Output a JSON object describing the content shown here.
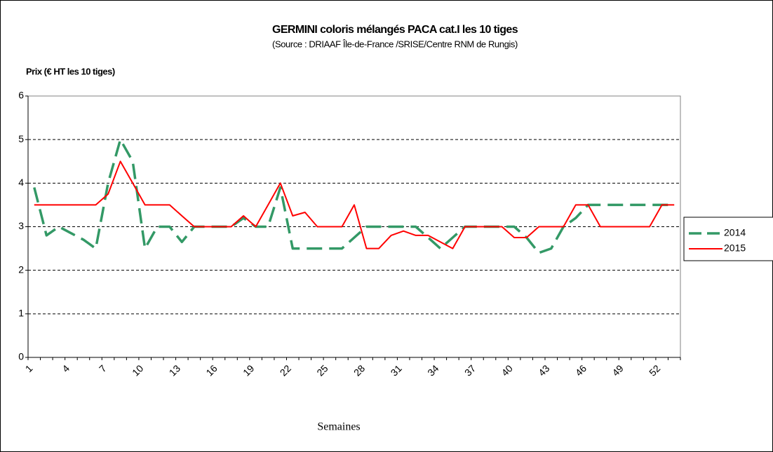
{
  "chart_data": {
    "type": "line",
    "title": "GERMINI coloris mélangés PACA cat.I les 10 tiges",
    "subtitle": "(Source : DRIAAF Île-de-France /SRISE/Centre RNM de Rungis)",
    "y_label": "Prix (€ HT les 10 tiges)",
    "x_label": "Semaines",
    "categories": [
      1,
      null,
      null,
      4,
      null,
      null,
      7,
      null,
      null,
      10,
      null,
      null,
      13,
      null,
      null,
      16,
      null,
      null,
      19,
      null,
      null,
      22,
      null,
      null,
      25,
      null,
      null,
      28,
      null,
      null,
      31,
      null,
      null,
      34,
      null,
      null,
      37,
      null,
      null,
      40,
      null,
      null,
      43,
      null,
      null,
      46,
      null,
      null,
      49,
      null,
      null,
      52,
      null
    ],
    "series": [
      {
        "name": "2014",
        "color": "#339966",
        "dash": true,
        "values": [
          3.9,
          2.8,
          3.0,
          2.85,
          2.7,
          2.5,
          4.0,
          5.0,
          4.5,
          2.5,
          3.0,
          3.0,
          2.65,
          3.0,
          3.0,
          3.0,
          3.0,
          3.2,
          3.0,
          3.0,
          3.9,
          2.5,
          2.5,
          2.5,
          2.5,
          2.5,
          2.75,
          3.0,
          3.0,
          3.0,
          3.0,
          3.0,
          2.75,
          2.5,
          2.75,
          3.0,
          3.0,
          3.0,
          3.0,
          3.0,
          2.75,
          2.4,
          2.5,
          3.0,
          3.2,
          3.5,
          3.5,
          3.5,
          3.5,
          3.5,
          3.5,
          3.5,
          3.5
        ]
      },
      {
        "name": "2015",
        "color": "#ff0000",
        "dash": false,
        "values": [
          3.5,
          3.5,
          3.5,
          3.5,
          3.5,
          3.5,
          3.75,
          4.5,
          4.0,
          3.5,
          3.5,
          3.5,
          3.25,
          3.0,
          3.0,
          3.0,
          3.0,
          3.25,
          3.0,
          3.5,
          4.0,
          3.25,
          3.33,
          3.0,
          3.0,
          3.0,
          3.5,
          2.5,
          2.5,
          2.8,
          2.9,
          2.8,
          2.8,
          2.65,
          2.5,
          3.0,
          3.0,
          3.0,
          3.0,
          2.75,
          2.75,
          3.0,
          3.0,
          3.0,
          3.5,
          3.5,
          3.0,
          3.0,
          3.0,
          3.0,
          3.0,
          3.5,
          3.5
        ]
      }
    ],
    "ylim": [
      0,
      6
    ],
    "yticks": [
      0,
      1,
      2,
      3,
      4,
      5,
      6
    ],
    "grid": true,
    "legend": "right"
  }
}
